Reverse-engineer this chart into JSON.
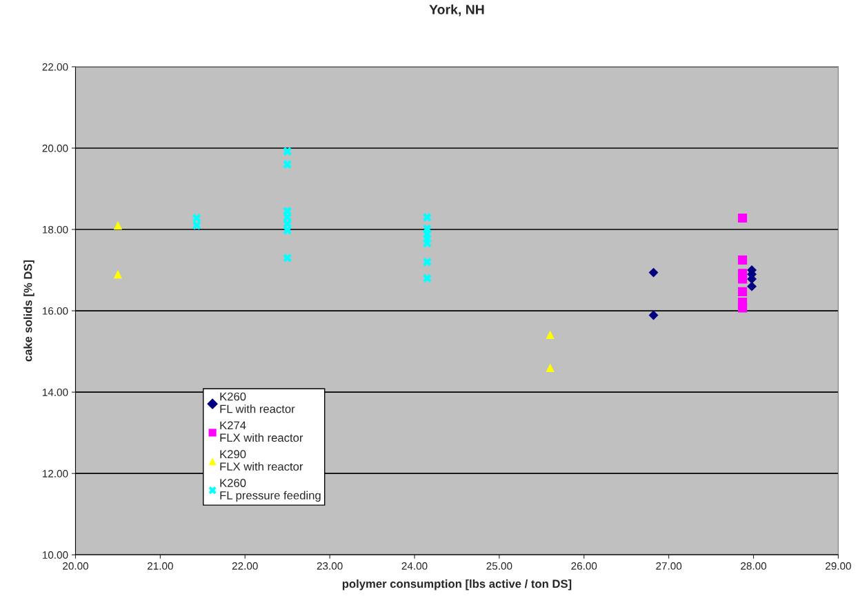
{
  "chart_data": {
    "type": "scatter",
    "title": "York, NH",
    "xlabel": "polymer consumption [lbs active / ton DS]",
    "ylabel": "cake solids [% DS]",
    "series": [
      {
        "name": "K260\nFL with reactor",
        "color": "#000080",
        "marker": "diamond",
        "x": [
          26.82,
          26.82,
          27.98,
          27.98,
          27.98,
          27.98
        ],
        "values": [
          16.94,
          15.89,
          17.0,
          16.9,
          16.78,
          16.6
        ]
      },
      {
        "name": "K274\nFLX with reactor",
        "color": "#ff00ff",
        "marker": "square",
        "x": [
          27.87,
          27.87,
          27.87,
          27.87,
          27.87,
          27.87,
          27.87
        ],
        "values": [
          18.28,
          17.25,
          16.92,
          16.78,
          16.47,
          16.21,
          16.07
        ]
      },
      {
        "name": "K290\nFLX with reactor",
        "color": "#ffff00",
        "marker": "triangle",
        "x": [
          20.5,
          20.5,
          25.6,
          25.6
        ],
        "values": [
          18.1,
          16.9,
          15.41,
          14.6
        ]
      },
      {
        "name": "K260\nFL pressure feeding",
        "color": "#00ffff",
        "marker": "cross",
        "x": [
          21.43,
          21.43,
          22.5,
          22.5,
          22.5,
          22.5,
          22.5,
          22.5,
          22.5,
          24.15,
          24.15,
          24.15,
          24.15,
          24.15,
          24.15,
          24.15
        ],
        "values": [
          18.28,
          18.1,
          19.92,
          19.6,
          18.45,
          18.3,
          18.14,
          17.98,
          17.3,
          18.3,
          18.02,
          17.88,
          17.77,
          17.66,
          17.2,
          16.8
        ]
      }
    ],
    "xlim": [
      20,
      29
    ],
    "xticks": [
      {
        "value": 20,
        "label": "20.00"
      },
      {
        "value": 21,
        "label": "21.00"
      },
      {
        "value": 22,
        "label": "22.00"
      },
      {
        "value": 23,
        "label": "23.00"
      },
      {
        "value": 24,
        "label": "24.00"
      },
      {
        "value": 25,
        "label": "25.00"
      },
      {
        "value": 26,
        "label": "26.00"
      },
      {
        "value": 27,
        "label": "27.00"
      },
      {
        "value": 28,
        "label": "28.00"
      },
      {
        "value": 29,
        "label": "29.00"
      }
    ],
    "ylim": [
      10,
      22
    ],
    "yticks": [
      {
        "value": 10,
        "label": "10.00"
      },
      {
        "value": 12,
        "label": "12.00"
      },
      {
        "value": 14,
        "label": "14.00"
      },
      {
        "value": 16,
        "label": "16.00"
      },
      {
        "value": 18,
        "label": "18.00"
      },
      {
        "value": 20,
        "label": "20.00"
      },
      {
        "value": 22,
        "label": "22.00"
      }
    ],
    "grid": "y",
    "legend": "lower left"
  }
}
